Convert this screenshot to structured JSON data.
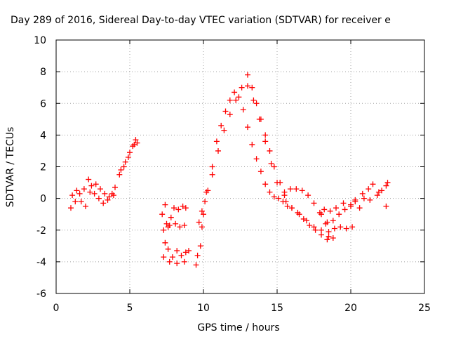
{
  "chart_data": {
    "type": "scatter",
    "title": "Day 289 of 2016, Sidereal Day-to-day VTEC variation (SDTVAR) for receiver e",
    "xlabel": "GPS time / hours",
    "ylabel": "SDTVAR / TECUs",
    "xlim": [
      0,
      25
    ],
    "ylim": [
      -6,
      10
    ],
    "xticks": [
      "0",
      "5",
      "10",
      "15",
      "20",
      "25"
    ],
    "yticks": [
      "-6",
      "-4",
      "-2",
      "0",
      "2",
      "4",
      "6",
      "8",
      "10"
    ],
    "grid": true,
    "marker": "plus",
    "color": "#ff0000",
    "series": [
      {
        "x": [
          1.0,
          1.3,
          1.6,
          1.9,
          2.2,
          2.4,
          2.6,
          2.9,
          3.2,
          3.5,
          3.8,
          4.0,
          1.1,
          1.4,
          1.7,
          2.0,
          2.3,
          2.7,
          3.0,
          3.3,
          3.6,
          3.9,
          4.3,
          4.6,
          4.9,
          5.2,
          5.4,
          5.5,
          4.4,
          4.7,
          5.0,
          5.3,
          7.2,
          7.4,
          7.6,
          7.8,
          8.0,
          8.3,
          8.6,
          8.8,
          7.3,
          7.5,
          7.7,
          8.1,
          8.4,
          8.7,
          7.4,
          7.6,
          7.9,
          8.2,
          8.5,
          8.8,
          9.0,
          7.3,
          7.7,
          8.2,
          8.7,
          9.5,
          9.6,
          9.8,
          9.9,
          10.0,
          10.1,
          10.2,
          9.7,
          9.9,
          10.3,
          10.6,
          10.9,
          11.2,
          11.5,
          11.8,
          12.1,
          12.4,
          12.7,
          13.0,
          13.3,
          13.6,
          13.9,
          14.2,
          14.5,
          14.8,
          15.1,
          15.4,
          15.7,
          10.6,
          11.0,
          11.4,
          11.8,
          12.2,
          12.6,
          13.0,
          13.4,
          13.8,
          14.2,
          14.6,
          15.0,
          15.5,
          13.0,
          13.3,
          13.6,
          13.9,
          14.2,
          14.5,
          14.8,
          15.2,
          15.6,
          16.0,
          16.4,
          16.8,
          17.2,
          17.6,
          18.0,
          18.4,
          18.8,
          15.5,
          15.9,
          16.3,
          16.7,
          17.1,
          17.5,
          17.9,
          18.3,
          16.0,
          16.5,
          17.0,
          17.5,
          18.0,
          18.5,
          18.0,
          18.4,
          18.8,
          19.2,
          19.6,
          20.0,
          20.3,
          18.5,
          18.9,
          19.3,
          19.7,
          20.1,
          18.2,
          18.6,
          19.0,
          19.5,
          20.0,
          20.3,
          20.6,
          20.9,
          21.2,
          21.5,
          21.8,
          22.1,
          22.4,
          20.8,
          21.3,
          21.9,
          22.5,
          22.4
        ],
        "y": [
          -0.6,
          -0.2,
          0.3,
          0.6,
          1.2,
          0.8,
          0.3,
          0.0,
          -0.3,
          -0.1,
          0.3,
          0.7,
          0.2,
          0.5,
          -0.2,
          -0.5,
          0.4,
          0.9,
          0.6,
          0.3,
          0.1,
          0.2,
          1.5,
          2.0,
          2.6,
          3.3,
          3.7,
          3.5,
          1.8,
          2.3,
          2.9,
          3.4,
          -1.0,
          -0.4,
          -1.8,
          -1.2,
          -0.6,
          -0.7,
          -0.5,
          -0.6,
          -2.0,
          -1.6,
          -1.7,
          -1.6,
          -1.8,
          -1.7,
          -2.8,
          -3.2,
          -3.7,
          -3.3,
          -3.6,
          -3.4,
          -3.3,
          -3.7,
          -4.0,
          -4.1,
          -4.0,
          -4.2,
          -3.6,
          -3.0,
          -1.8,
          -1.0,
          -0.2,
          0.4,
          -1.5,
          -0.8,
          0.5,
          2.0,
          3.6,
          4.6,
          5.5,
          6.2,
          6.7,
          6.4,
          5.6,
          4.5,
          3.4,
          2.5,
          1.7,
          0.9,
          0.4,
          0.1,
          0.0,
          -0.2,
          -0.5,
          1.5,
          3.0,
          4.3,
          5.3,
          6.2,
          7.0,
          7.1,
          6.2,
          5.0,
          3.6,
          2.2,
          1.0,
          0.2,
          7.8,
          7.0,
          6.0,
          5.0,
          4.0,
          3.0,
          2.0,
          1.0,
          -0.2,
          -0.6,
          -0.9,
          -1.3,
          -1.7,
          -2.0,
          -2.3,
          -2.6,
          -2.5,
          0.4,
          0.6,
          0.6,
          0.5,
          0.2,
          -0.3,
          -0.9,
          -1.6,
          -0.6,
          -1.0,
          -1.4,
          -1.8,
          -2.0,
          -2.4,
          -1.0,
          -1.5,
          -1.4,
          -1.0,
          -0.7,
          -0.4,
          -0.2,
          -2.1,
          -1.9,
          -1.8,
          -1.9,
          -1.8,
          -0.7,
          -0.8,
          -0.6,
          -0.3,
          -0.5,
          -0.1,
          -0.6,
          0.0,
          0.6,
          0.9,
          0.2,
          0.5,
          0.8,
          0.3,
          -0.1,
          0.4,
          1.0,
          -0.5
        ]
      }
    ]
  }
}
